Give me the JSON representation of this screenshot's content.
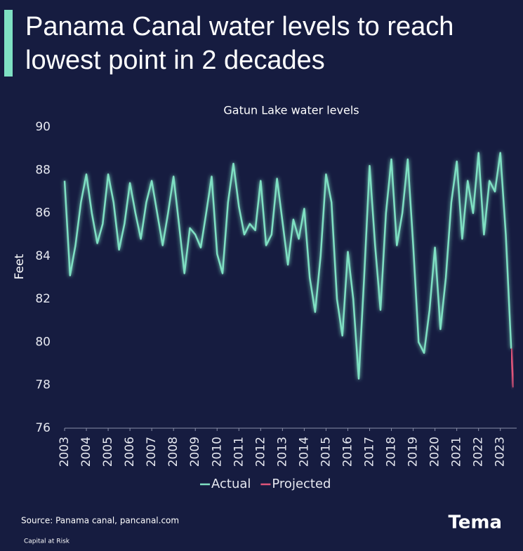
{
  "chart_data": {
    "type": "line",
    "title_lines": [
      "Panama Canal water levels to reach",
      "lowest point in 2 decades"
    ],
    "subtitle": "Gatun Lake water levels",
    "y_label": "Feet",
    "source": "Source: Panama canal, pancanal.com",
    "footnote": "Capital at Risk",
    "brand": "Tema",
    "xlim": [
      2003,
      2023.75
    ],
    "xticks": [
      2003,
      2004,
      2005,
      2006,
      2007,
      2008,
      2009,
      2010,
      2011,
      2012,
      2013,
      2014,
      2015,
      2016,
      2017,
      2018,
      2019,
      2020,
      2021,
      2022,
      2023
    ],
    "ylim": [
      76,
      90
    ],
    "yticks": [
      76,
      78,
      80,
      82,
      84,
      86,
      88,
      90
    ],
    "grid": false,
    "legend": "bottom",
    "series": [
      {
        "name": "Actual",
        "color": "#7fe0c3",
        "x": [
          2003,
          2003.25,
          2003.5,
          2003.75,
          2004,
          2004.25,
          2004.5,
          2004.75,
          2005,
          2005.25,
          2005.5,
          2005.75,
          2006,
          2006.25,
          2006.5,
          2006.75,
          2007,
          2007.25,
          2007.5,
          2007.75,
          2008,
          2008.25,
          2008.5,
          2008.75,
          2009,
          2009.25,
          2009.5,
          2009.75,
          2010,
          2010.25,
          2010.5,
          2010.75,
          2011,
          2011.25,
          2011.5,
          2011.75,
          2012,
          2012.25,
          2012.5,
          2012.75,
          2013,
          2013.25,
          2013.5,
          2013.75,
          2014,
          2014.25,
          2014.5,
          2014.75,
          2015,
          2015.25,
          2015.5,
          2015.75,
          2016,
          2016.25,
          2016.5,
          2016.75,
          2017,
          2017.25,
          2017.5,
          2017.75,
          2018,
          2018.25,
          2018.5,
          2018.75,
          2019,
          2019.25,
          2019.5,
          2019.75,
          2020,
          2020.25,
          2020.5,
          2020.75,
          2021,
          2021.25,
          2021.5,
          2021.75,
          2022,
          2022.25,
          2022.5,
          2022.75,
          2023,
          2023.25,
          2023.5
        ],
        "values": [
          87.5,
          83.1,
          84.5,
          86.5,
          87.8,
          86.0,
          84.6,
          85.5,
          87.8,
          86.5,
          84.3,
          85.5,
          87.4,
          86.0,
          84.8,
          86.5,
          87.5,
          86.0,
          84.5,
          86.0,
          87.7,
          85.5,
          83.2,
          85.3,
          85.0,
          84.4,
          86.0,
          87.7,
          84.1,
          83.2,
          86.5,
          88.3,
          86.3,
          85.0,
          85.5,
          85.2,
          87.5,
          84.5,
          85.0,
          87.6,
          85.6,
          83.6,
          85.7,
          84.8,
          86.2,
          83.0,
          81.4,
          84.0,
          87.8,
          86.5,
          82.0,
          80.3,
          84.2,
          82.0,
          78.3,
          83.0,
          88.2,
          84.5,
          81.5,
          86.0,
          88.5,
          84.5,
          86.0,
          88.5,
          84.5,
          80.0,
          79.5,
          81.5,
          84.4,
          80.6,
          83.0,
          86.5,
          88.4,
          84.8,
          87.5,
          86.0,
          88.8,
          85.0,
          87.5,
          87.0,
          88.8,
          85.0,
          79.7
        ]
      },
      {
        "name": "Projected",
        "color": "#e0557a",
        "x": [
          2023.5,
          2023.6
        ],
        "values": [
          79.7,
          77.9
        ]
      }
    ]
  }
}
